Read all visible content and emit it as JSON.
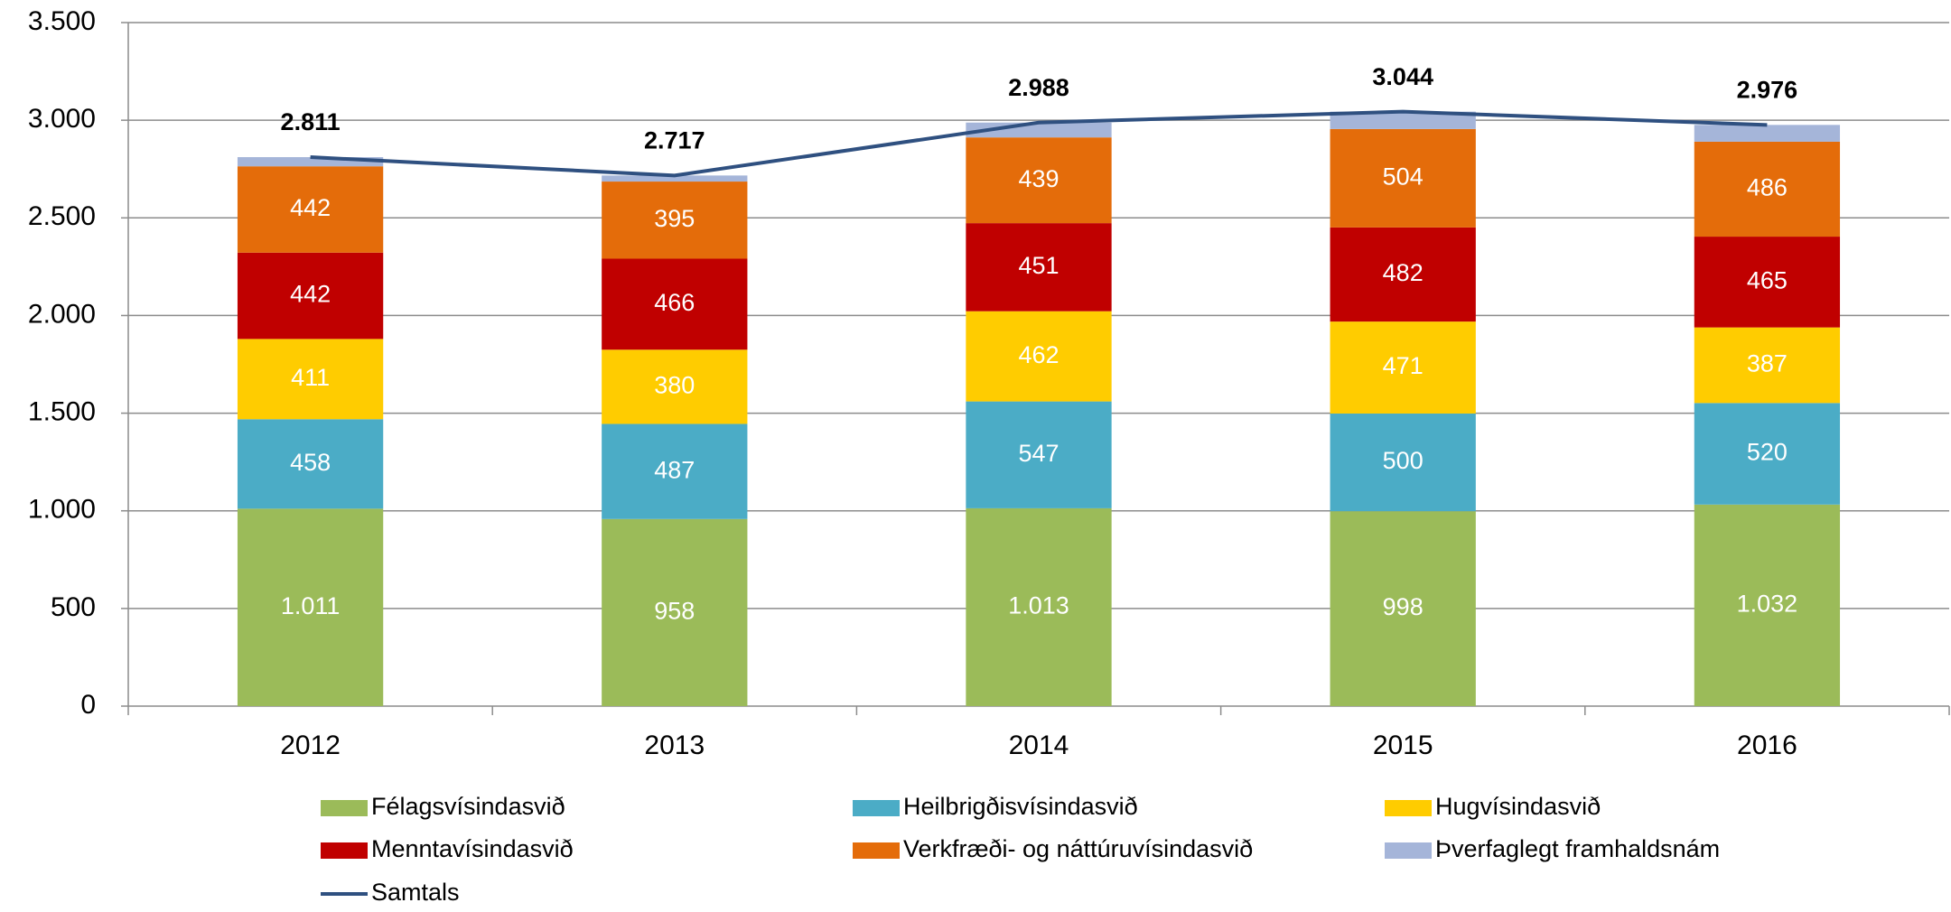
{
  "chart_data": {
    "type": "bar",
    "stacked": true,
    "categories": [
      "2012",
      "2013",
      "2014",
      "2015",
      "2016"
    ],
    "series": [
      {
        "name": "Félagsvísindasvið",
        "color": "#9bbb59",
        "values": [
          1011,
          958,
          1013,
          998,
          1032
        ],
        "value_labels": [
          "1.011",
          "958",
          "1.013",
          "998",
          "1.032"
        ]
      },
      {
        "name": "Heilbrigðisvísindasvið",
        "color": "#4bacc6",
        "values": [
          458,
          487,
          547,
          500,
          520
        ]
      },
      {
        "name": "Hugvísindasvið",
        "color": "#ffcc00",
        "values": [
          411,
          380,
          462,
          471,
          387
        ]
      },
      {
        "name": "Menntavísindasvið",
        "color": "#c00000",
        "values": [
          442,
          466,
          451,
          482,
          465
        ]
      },
      {
        "name": "Verkfræði- og náttúruvísindasvið",
        "color": "#e46c0a",
        "values": [
          442,
          395,
          439,
          504,
          486
        ]
      },
      {
        "name": "Þverfaglegt framhaldsnám",
        "color": "#a5b5d9",
        "values": [
          47,
          31,
          76,
          89,
          86
        ],
        "labels_shown": false
      },
      {
        "name": "Samtals",
        "type": "line",
        "color": "#2f5080",
        "values": [
          2811,
          2717,
          2988,
          3044,
          2976
        ],
        "value_labels": [
          "2.811",
          "2.717",
          "2.988",
          "3.044",
          "2.976"
        ]
      }
    ],
    "ylim": [
      0,
      3500
    ],
    "yticks": [
      0,
      500,
      {
        "value": 1000,
        "label": "1.000"
      },
      {
        "value": 1500,
        "label": "1.500"
      },
      {
        "value": 2000,
        "label": "2.000"
      },
      {
        "value": 2500,
        "label": "2.500"
      },
      {
        "value": 3000,
        "label": "3.000"
      },
      {
        "value": 3500,
        "label": "3.500"
      }
    ],
    "grid": true,
    "legend": "bottom"
  }
}
